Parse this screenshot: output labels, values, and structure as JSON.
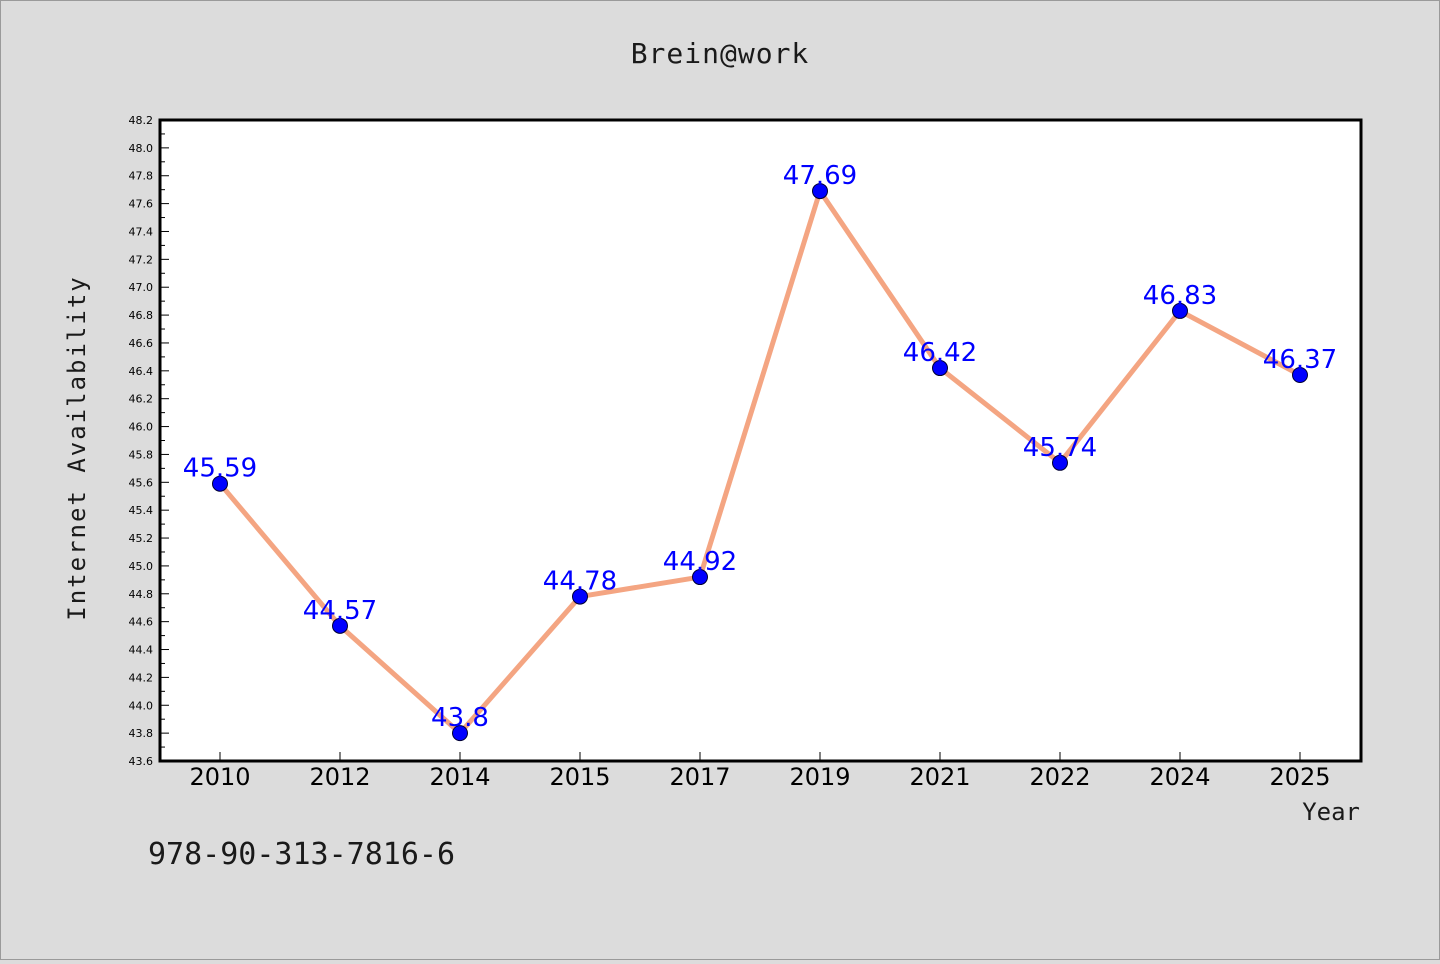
{
  "page": {
    "title": "Brein@work",
    "footer_code": "978-90-313-7816-6"
  },
  "chart_data": {
    "type": "line",
    "title": "Brein@work",
    "xlabel": "Year",
    "ylabel": "Internet Availability",
    "categories": [
      "2010",
      "2012",
      "2014",
      "2015",
      "2017",
      "2019",
      "2021",
      "2022",
      "2024",
      "2025"
    ],
    "values": [
      45.59,
      44.57,
      43.8,
      44.78,
      44.92,
      47.69,
      46.42,
      45.74,
      46.83,
      46.37
    ],
    "data_labels": [
      "45.59",
      "44.57",
      "43.8",
      "44.78",
      "44.92",
      "47.69",
      "46.42",
      "45.74",
      "46.83",
      "46.37"
    ],
    "ylim": [
      43.6,
      48.2
    ],
    "yticks": [
      "43.6",
      "43.8",
      "44.0",
      "44.2",
      "44.4",
      "44.6",
      "44.8",
      "45.0",
      "45.2",
      "45.4",
      "45.6",
      "45.8",
      "46.0",
      "46.2",
      "46.4",
      "46.6",
      "46.8",
      "47.0",
      "47.2",
      "47.4",
      "47.6",
      "47.8",
      "48.0",
      "48.2"
    ],
    "grid": false,
    "legend": "none",
    "colors": {
      "background": "#dcdcdc",
      "plot_background": "#ffffff",
      "line": "#f4a582",
      "marker": "#0000ff",
      "data_label": "#0000ff"
    }
  }
}
